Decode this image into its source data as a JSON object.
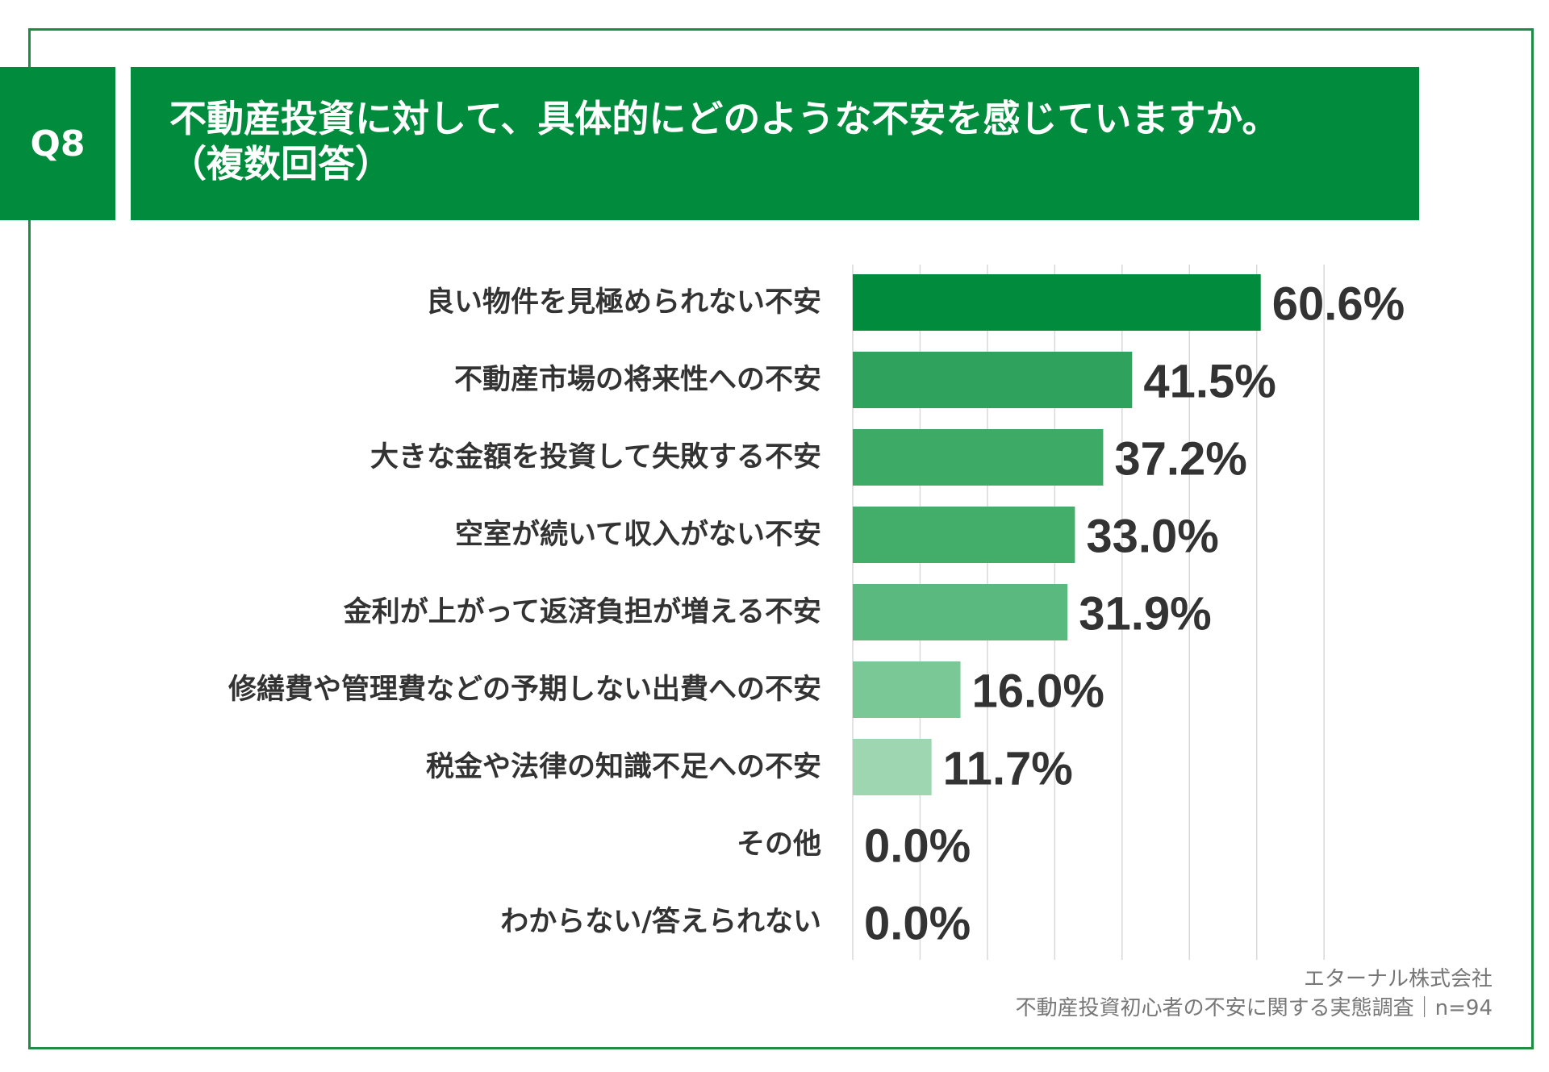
{
  "badge": "Q8",
  "title": {
    "line1": "不動産投資に対して、具体的にどのような不安を感じていますか。",
    "line2": "（複数回答）"
  },
  "chart_data": {
    "type": "bar",
    "orientation": "horizontal",
    "categories": [
      "良い物件を見極められない不安",
      "不動産市場の将来性への不安",
      "大きな金額を投資して失敗する不安",
      "空室が続いて収入がない不安",
      "金利が上がって返済負担が増える不安",
      "修繕費や管理費などの予期しない出費への不安",
      "税金や法律の知識不足への不安",
      "その他",
      "わからない/答えられない"
    ],
    "values": [
      60.6,
      41.5,
      37.2,
      33.0,
      31.9,
      16.0,
      11.7,
      0.0,
      0.0
    ],
    "value_labels": [
      "60.6%",
      "41.5%",
      "37.2%",
      "33.0%",
      "31.9%",
      "16.0%",
      "11.7%",
      "0.0%",
      "0.0%"
    ],
    "bar_colors": [
      "#008c3c",
      "#2fa35e",
      "#3daa66",
      "#43ad6a",
      "#5ab97e",
      "#7ac895",
      "#9dd6b0",
      "#b8e2c6",
      "#b8e2c6"
    ],
    "xlim": [
      0,
      70
    ],
    "grid": true,
    "legend": "none"
  },
  "footer": {
    "line1": "エターナル株式会社",
    "line2": "不動産投資初心者の不安に関する実態調査｜n=94"
  }
}
